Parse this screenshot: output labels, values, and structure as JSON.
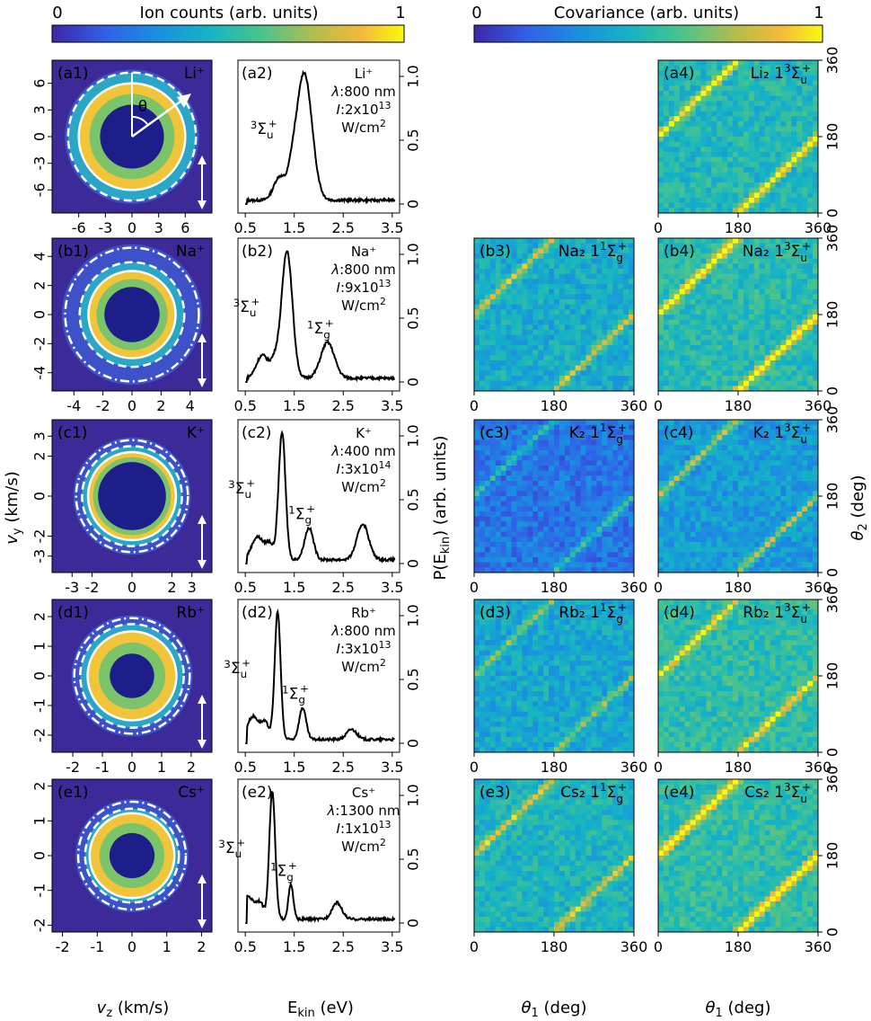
{
  "colorbars": [
    {
      "label": "Ion counts (arb. units)",
      "min": "0",
      "max": "1"
    },
    {
      "label": "Covariance (arb. units)",
      "min": "0",
      "max": "1"
    }
  ],
  "axes": {
    "vz_label": "v_z (km/s)",
    "vy_label": "v_y (km/s)",
    "ekin_label": "E_kin (eV)",
    "pekin_label": "P(E_kin) (arb. units)",
    "theta1_label": "θ_1 (deg)",
    "theta2_label": "θ_2 (deg)"
  },
  "angle_symbol": "θ",
  "colors": {
    "cmap_low": "#3d2b8f",
    "cmap_mid": "#21a4a0",
    "cmap_high": "#f7e225"
  },
  "rows": [
    {
      "key": "a",
      "ion": "Li⁺",
      "ion_base": "Li",
      "wavelength": "800 nm",
      "intensity_mant": "2x10",
      "intensity_exp": "13",
      "vmi_ticks": [
        -6,
        -3,
        0,
        3,
        6
      ],
      "vmi_extent": 9,
      "vmi_inner": 3.6,
      "vmi_solid": 6.0,
      "vmi_dash": 7.2,
      "vmi_dashdot": null,
      "peaks": [
        {
          "sym": "3Σu+",
          "center": 1.7,
          "amp": 1.0,
          "width": 0.16
        }
      ],
      "cov": [
        null,
        null,
        {
          "mol": "Li₂",
          "term": "13Σu+",
          "mean": 0.48,
          "stripe": 0.55
        }
      ]
    },
    {
      "key": "b",
      "ion": "Na⁺",
      "ion_base": "Na",
      "wavelength": "800 nm",
      "intensity_mant": "9x10",
      "intensity_exp": "13",
      "vmi_ticks": [
        -4,
        -2,
        0,
        2,
        4
      ],
      "vmi_extent": 5.5,
      "vmi_inner": 1.9,
      "vmi_solid": 3.0,
      "vmi_dash": 3.6,
      "vmi_dashdot": 4.6,
      "peaks": [
        {
          "sym": "3Σu+",
          "center": 1.35,
          "amp": 1.0,
          "width": 0.11
        },
        {
          "sym": "1Σg+",
          "center": 2.18,
          "amp": 0.28,
          "width": 0.14
        }
      ],
      "cov": [
        {
          "mol": "Na₂",
          "term": "11Σg+",
          "mean": 0.42,
          "stripe": 0.4
        },
        {
          "mol": "Na₂",
          "term": "13Σu+",
          "mean": 0.5,
          "stripe": 0.7
        }
      ]
    },
    {
      "key": "c",
      "ion": "K⁺",
      "ion_base": "K",
      "wavelength": "400 nm",
      "intensity_mant": "3x10",
      "intensity_exp": "14",
      "vmi_ticks": [
        -3,
        -2,
        0,
        2,
        3
      ],
      "vmi_extent": 4.0,
      "vmi_inner": 1.7,
      "vmi_solid": 2.2,
      "vmi_dash": 2.5,
      "vmi_dashdot": 2.8,
      "peaks": [
        {
          "sym": "3Σu+",
          "center": 1.25,
          "amp": 1.0,
          "width": 0.07
        },
        {
          "sym": "1Σg+",
          "center": 1.8,
          "amp": 0.25,
          "width": 0.09
        },
        {
          "sym": "",
          "center": 2.9,
          "amp": 0.28,
          "width": 0.12
        }
      ],
      "cov": [
        {
          "mol": "K₂",
          "term": "11Σg+",
          "mean": 0.22,
          "stripe": 0.3
        },
        {
          "mol": "K₂",
          "term": "13Σu+",
          "mean": 0.35,
          "stripe": 0.4
        }
      ]
    },
    {
      "key": "d",
      "ion": "Rb⁺",
      "ion_base": "Rb",
      "wavelength": "800 nm",
      "intensity_mant": "3x10",
      "intensity_exp": "13",
      "vmi_ticks": [
        -2,
        -1,
        0,
        1,
        2
      ],
      "vmi_extent": 2.7,
      "vmi_inner": 0.75,
      "vmi_solid": 1.5,
      "vmi_dash": 1.75,
      "vmi_dashdot": 1.95,
      "peaks": [
        {
          "sym": "3Σu+",
          "center": 1.16,
          "amp": 1.0,
          "width": 0.06
        },
        {
          "sym": "1Σg+",
          "center": 1.67,
          "amp": 0.25,
          "width": 0.07
        },
        {
          "sym": "",
          "center": 2.67,
          "amp": 0.08,
          "width": 0.1
        }
      ],
      "cov": [
        {
          "mol": "Rb₂",
          "term": "11Σg+",
          "mean": 0.4,
          "stripe": 0.3
        },
        {
          "mol": "Rb₂",
          "term": "13Σu+",
          "mean": 0.52,
          "stripe": 0.45
        }
      ]
    },
    {
      "key": "e",
      "ion": "Cs⁺",
      "ion_base": "Cs",
      "wavelength": "1300 nm",
      "intensity_mant": "1x10",
      "intensity_exp": "13",
      "vmi_ticks": [
        -2,
        -1,
        0,
        1,
        2
      ],
      "vmi_extent": 2.3,
      "vmi_inner": 0.65,
      "vmi_solid": 1.22,
      "vmi_dash": 1.35,
      "vmi_dashdot": 1.55,
      "peaks": [
        {
          "sym": "3Σu+",
          "center": 1.05,
          "amp": 1.0,
          "width": 0.06
        },
        {
          "sym": "1Σg+",
          "center": 1.43,
          "amp": 0.27,
          "width": 0.05
        },
        {
          "sym": "",
          "center": 2.37,
          "amp": 0.13,
          "width": 0.1
        }
      ],
      "cov": [
        {
          "mol": "Cs₂",
          "term": "11Σg+",
          "mean": 0.46,
          "stripe": 0.4
        },
        {
          "mol": "Cs₂",
          "term": "13Σu+",
          "mean": 0.52,
          "stripe": 0.75
        }
      ]
    }
  ],
  "chart_data": {
    "type": "heatmap",
    "title": "",
    "panels": [
      {
        "panel": "a1",
        "kind": "velocity map image",
        "xlabel": "v_z (km/s)",
        "ylabel": "v_y (km/s)",
        "ticks": [
          -6,
          -3,
          0,
          3,
          6
        ]
      },
      {
        "panel": "a2",
        "kind": "line",
        "x_range": [
          0.5,
          3.6
        ],
        "xticks": [
          0.5,
          1.5,
          2.5,
          3.5
        ],
        "yticks": [
          0,
          0.5,
          1.0
        ],
        "peak_eV": 1.7
      },
      {
        "panel": "a4",
        "kind": "heatmap",
        "xticks": [
          0,
          180,
          360
        ],
        "yticks": [
          0,
          180,
          360
        ]
      },
      {
        "panel": "b2",
        "kind": "line",
        "peaks_eV": [
          1.35,
          2.18
        ]
      },
      {
        "panel": "c2",
        "kind": "line",
        "peaks_eV": [
          1.25,
          1.8,
          2.9
        ]
      },
      {
        "panel": "d2",
        "kind": "line",
        "peaks_eV": [
          1.16,
          1.67,
          2.67
        ]
      },
      {
        "panel": "e2",
        "kind": "line",
        "peaks_eV": [
          1.05,
          1.43,
          2.37
        ]
      }
    ],
    "ekin_ticks": [
      "0.5",
      "1.5",
      "2.5",
      "3.5"
    ],
    "p_ticks": [
      "0",
      "0.5",
      "1.0"
    ],
    "theta_ticks": [
      "0",
      "180",
      "360"
    ]
  }
}
